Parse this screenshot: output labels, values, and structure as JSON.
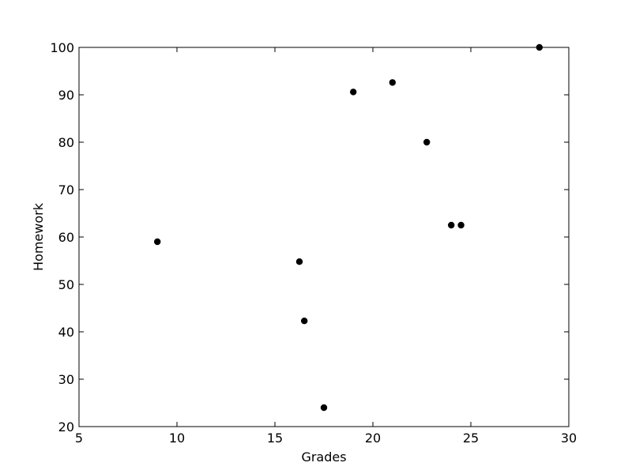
{
  "chart_data": {
    "type": "scatter",
    "title": "",
    "xlabel": "Grades",
    "ylabel": "Homework",
    "xlim": [
      5,
      30
    ],
    "ylim": [
      20,
      100
    ],
    "xticks": [
      5,
      10,
      15,
      20,
      25,
      30
    ],
    "yticks": [
      20,
      30,
      40,
      50,
      60,
      70,
      80,
      90,
      100
    ],
    "grid": false,
    "legend": "none",
    "marker_color": "#000000",
    "series": [
      {
        "points": [
          {
            "x": 9.0,
            "y": 59.0
          },
          {
            "x": 16.25,
            "y": 54.8
          },
          {
            "x": 16.5,
            "y": 42.3
          },
          {
            "x": 17.5,
            "y": 24.0
          },
          {
            "x": 19.0,
            "y": 90.6
          },
          {
            "x": 21.0,
            "y": 92.6
          },
          {
            "x": 22.75,
            "y": 80.0
          },
          {
            "x": 24.0,
            "y": 62.5
          },
          {
            "x": 24.5,
            "y": 62.5
          },
          {
            "x": 28.5,
            "y": 100.0
          }
        ]
      }
    ]
  }
}
